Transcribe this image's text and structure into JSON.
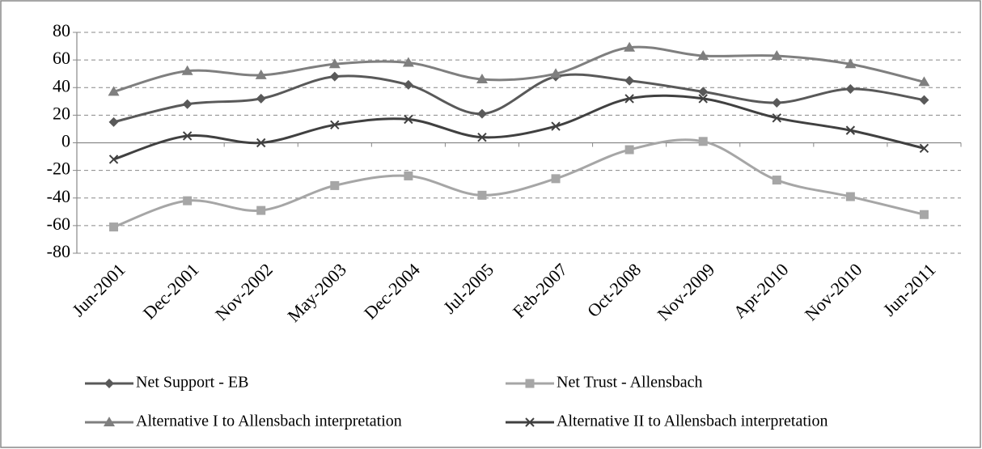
{
  "chart_data": {
    "type": "line",
    "categories": [
      "Jun-2001",
      "Dec-2001",
      "Nov-2002",
      "May-2003",
      "Dec-2004",
      "Jul-2005",
      "Feb-2007",
      "Oct-2008",
      "Nov-2009",
      "Apr-2010",
      "Nov-2010",
      "Jun-2011"
    ],
    "series": [
      {
        "name": "Net Support - EB",
        "color": "#595959",
        "marker": "diamond",
        "values": [
          15,
          28,
          32,
          48,
          42,
          21,
          48,
          45,
          37,
          29,
          39,
          31
        ]
      },
      {
        "name": "Net Trust - Allensbach",
        "color": "#a6a6a6",
        "marker": "square",
        "values": [
          -61,
          -42,
          -49,
          -31,
          -24,
          -38,
          -26,
          -5,
          1,
          -27,
          -39,
          -52
        ]
      },
      {
        "name": "Alternative I to Allensbach interpretation",
        "color": "#7f7f7f",
        "marker": "triangle",
        "values": [
          37,
          52,
          49,
          57,
          58,
          46,
          50,
          69,
          63,
          63,
          57,
          44
        ]
      },
      {
        "name": "Alternative II to Allensbach interpretation",
        "color": "#404040",
        "marker": "x",
        "values": [
          -12,
          5,
          0,
          13,
          17,
          4,
          12,
          32,
          32,
          18,
          9,
          -4
        ]
      }
    ],
    "ylim": [
      -80,
      80
    ],
    "yticks": [
      -80,
      -60,
      -40,
      -20,
      0,
      20,
      40,
      60,
      80
    ],
    "grid": true,
    "smooth": true,
    "legend": "bottom"
  }
}
